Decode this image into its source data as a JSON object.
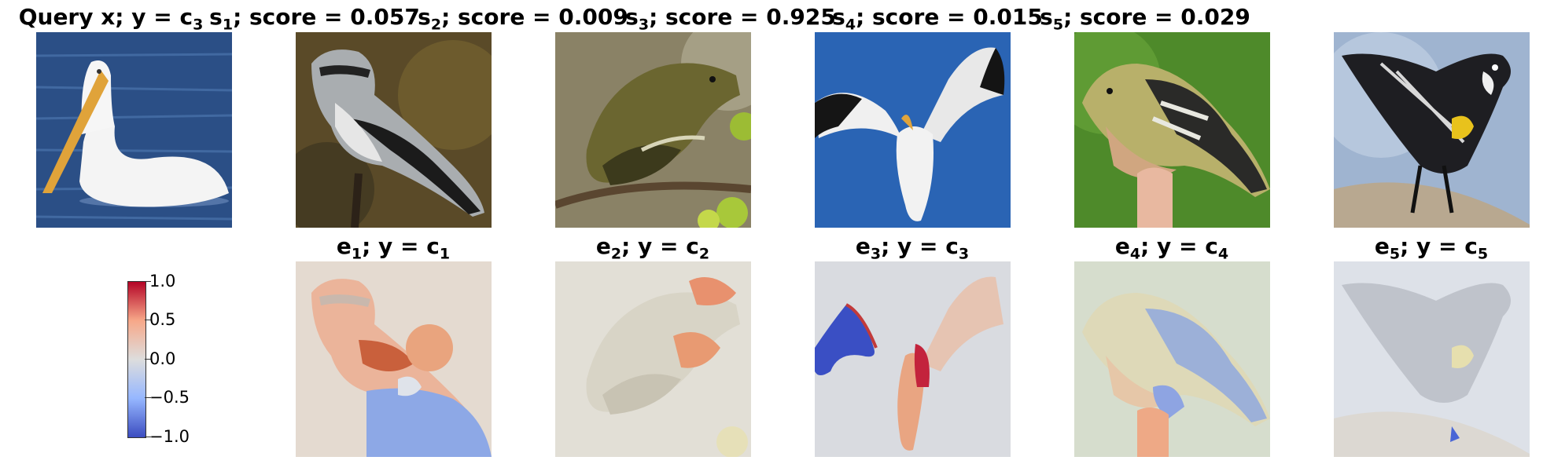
{
  "top_row": {
    "query": {
      "text": "Query x; y = c",
      "sub": "3"
    },
    "s1": {
      "label": "s",
      "sub": "1",
      "rest": "; score = 0.057"
    },
    "s2": {
      "label": "s",
      "sub": "2",
      "rest": "; score = 0.009"
    },
    "s3": {
      "label": "s",
      "sub": "3",
      "rest": "; score = 0.925"
    },
    "s4": {
      "label": "s",
      "sub": "4",
      "rest": "; score = 0.015"
    },
    "s5": {
      "label": "s",
      "sub": "5",
      "rest": "; score = 0.029"
    }
  },
  "bottom_row": {
    "e1": {
      "label": "e",
      "sub": "1",
      "rest": "; y = c",
      "sub2": "1"
    },
    "e2": {
      "label": "e",
      "sub": "2",
      "rest": "; y = c",
      "sub2": "2"
    },
    "e3": {
      "label": "e",
      "sub": "3",
      "rest": "; y = c",
      "sub2": "3"
    },
    "e4": {
      "label": "e",
      "sub": "4",
      "rest": "; y = c",
      "sub2": "4"
    },
    "e5": {
      "label": "e",
      "sub": "5",
      "rest": "; y = c",
      "sub2": "5"
    }
  },
  "colorbar": {
    "ticks": [
      "1.0",
      "0.5",
      "0.0",
      "−0.5",
      "−1.0"
    ],
    "range": [
      -1.0,
      1.0
    ],
    "colormap": "coolwarm",
    "colors": {
      "high": "#b40426",
      "mid": "#dddddd",
      "low": "#3b4cc0"
    }
  }
}
